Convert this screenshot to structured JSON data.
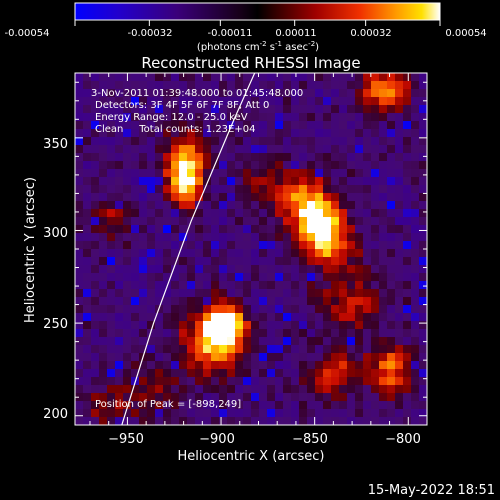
{
  "chart_data": {
    "type": "heatmap",
    "title": "Reconstructed RHESSI Image",
    "colorbar": {
      "ticks": [
        "-0.00054",
        "-0.00032",
        "-0.00011",
        "0.00011",
        "0.00032",
        "0.00054"
      ],
      "units_label": "(photons cm",
      "units_exp1": "-2",
      "units_mid": " s",
      "units_exp2": "-1",
      "units_mid2": " asec",
      "units_exp3": "-2",
      "units_end": ")",
      "range": [
        -0.00054,
        0.00054
      ]
    },
    "annotations": {
      "time": "3-Nov-2011 01:39:48.000 to 01:45:48.000",
      "detectors": "Detectors: 3F 4F 5F 6F 7F 8F, Att 0",
      "energy": "Energy Range: 12.0 - 25.0 keV",
      "clean": "Clean     Total counts: 1.23E+04",
      "peak": "Position of Peak = [-898,249]"
    },
    "x_axis": {
      "label": "Heliocentric X (arcsec)",
      "range": [
        -978,
        -790
      ],
      "ticks": [
        -950,
        -900,
        -850,
        -800
      ],
      "tick_labels": [
        "−950",
        "−900",
        "−850",
        "−800"
      ]
    },
    "y_axis": {
      "label": "Heliocentric Y (arcsec)",
      "range": [
        195,
        385
      ],
      "ticks": [
        200,
        250,
        300,
        350
      ],
      "tick_labels": [
        "200",
        "250",
        "300",
        "350"
      ]
    },
    "peak": {
      "x": -898,
      "y": 249
    },
    "sources": [
      {
        "x": -898,
        "y": 249,
        "amp": 1.0,
        "sx": 7,
        "sy": 7
      },
      {
        "x": -905,
        "y": 240,
        "amp": 0.75,
        "sx": 11,
        "sy": 12
      },
      {
        "x": -920,
        "y": 325,
        "amp": 0.95,
        "sx": 6,
        "sy": 8
      },
      {
        "x": -918,
        "y": 340,
        "amp": 0.6,
        "sx": 8,
        "sy": 10
      },
      {
        "x": -848,
        "y": 303,
        "amp": 0.95,
        "sx": 8,
        "sy": 9
      },
      {
        "x": -858,
        "y": 318,
        "amp": 0.6,
        "sx": 12,
        "sy": 10
      },
      {
        "x": -840,
        "y": 290,
        "amp": 0.5,
        "sx": 10,
        "sy": 10
      },
      {
        "x": -812,
        "y": 375,
        "amp": 0.75,
        "sx": 9,
        "sy": 7
      },
      {
        "x": -810,
        "y": 225,
        "amp": 0.6,
        "sx": 9,
        "sy": 9
      },
      {
        "x": -840,
        "y": 222,
        "amp": 0.55,
        "sx": 9,
        "sy": 8
      },
      {
        "x": -830,
        "y": 260,
        "amp": 0.45,
        "sx": 12,
        "sy": 9
      },
      {
        "x": -958,
        "y": 305,
        "amp": 0.3,
        "sx": 8,
        "sy": 8
      },
      {
        "x": -960,
        "y": 205,
        "amp": 0.3,
        "sx": 10,
        "sy": 8
      },
      {
        "x": -935,
        "y": 215,
        "amp": 0.3,
        "sx": 9,
        "sy": 9
      },
      {
        "x": -880,
        "y": 330,
        "amp": 0.25,
        "sx": 8,
        "sy": 8
      }
    ],
    "limb": [
      {
        "x": -953,
        "y": 195
      },
      {
        "x": -936,
        "y": 250
      },
      {
        "x": -916,
        "y": 305
      },
      {
        "x": -893,
        "y": 360
      },
      {
        "x": -882,
        "y": 385
      }
    ],
    "colors": {
      "background": "#000000",
      "text": "#ffffff",
      "limb": "#ffffff"
    }
  },
  "footer": {
    "date": "15-May-2022 18:51"
  }
}
